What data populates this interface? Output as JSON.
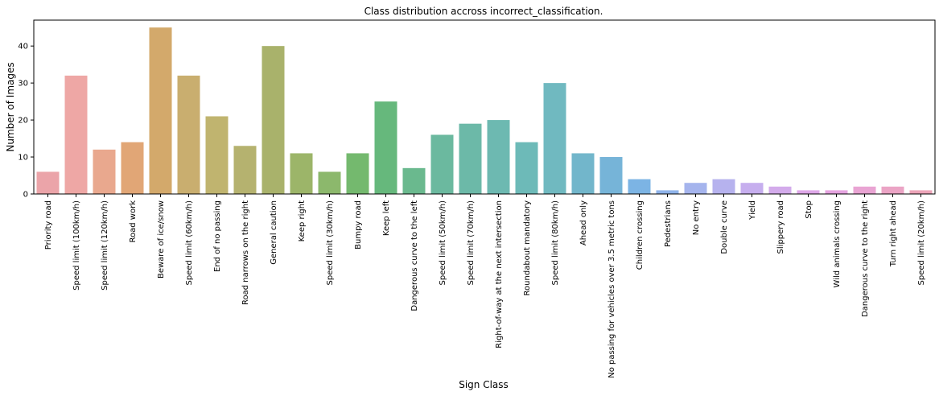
{
  "chart_data": {
    "type": "bar",
    "title": "Class distribution accross incorrect_classification.",
    "xlabel": "Sign Class",
    "ylabel": "Number of Images",
    "ylim": [
      0,
      47
    ],
    "yticks": [
      0,
      10,
      20,
      30,
      40
    ],
    "grid": false,
    "categories": [
      "Priority road",
      "Speed limit (100km/h)",
      "Speed limit (120km/h)",
      "Road work",
      "Beware of ice/snow",
      "Speed limit (60km/h)",
      "End of no passing",
      "Road narrows on the right",
      "General caution",
      "Keep right",
      "Speed limit (30km/h)",
      "Bumpy road",
      "Keep left",
      "Dangerous curve to the left",
      "Speed limit (50km/h)",
      "Speed limit (70km/h)",
      "Right-of-way at the next intersection",
      "Roundabout mandatory",
      "Speed limit (80km/h)",
      "Ahead only",
      "No passing for vehicles over 3.5 metric tons",
      "Children crossing",
      "Pedestrians",
      "No entry",
      "Double curve",
      "Yield",
      "Slippery road",
      "Stop",
      "Wild animals crossing",
      "Dangerous curve to the right",
      "Turn right ahead",
      "Speed limit (20km/h)"
    ],
    "values": [
      6,
      32,
      12,
      14,
      45,
      32,
      21,
      13,
      40,
      11,
      6,
      11,
      25,
      7,
      16,
      19,
      20,
      14,
      30,
      11,
      10,
      4,
      1,
      3,
      4,
      3,
      2,
      1,
      1,
      2,
      2,
      1
    ],
    "colors": [
      "#eba4a9",
      "#eea7a5",
      "#e9a88e",
      "#e1a676",
      "#d3a96b",
      "#c9ae6f",
      "#c0b46f",
      "#b5b26f",
      "#a9b26b",
      "#9cb569",
      "#8cb86c",
      "#74b96e",
      "#66b87c",
      "#6ab98e",
      "#6bb99f",
      "#6cb9a8",
      "#6db9b1",
      "#6dbab8",
      "#70b9c0",
      "#72b6cb",
      "#76b4d8",
      "#7cb4e4",
      "#8fb3ea",
      "#a5b4ed",
      "#b6b2ee",
      "#c6aeee",
      "#d3abeb",
      "#dea7e8",
      "#e5a4e0",
      "#e9a4d3",
      "#eba4c5",
      "#eca4b8"
    ]
  }
}
